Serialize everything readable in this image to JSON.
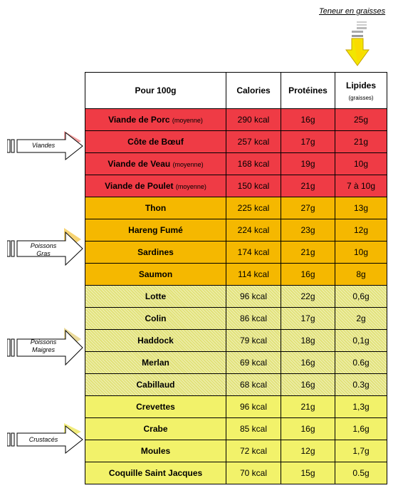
{
  "header_note": "Teneur en graisses",
  "columns": {
    "food": "Pour 100g",
    "calories": "Calories",
    "proteins": "Protéines",
    "lipids": "Lipides",
    "lipids_sub": "(graisses)"
  },
  "groups": [
    {
      "label_line1": "Viandes",
      "label_line2": "",
      "color": "#ef3b45"
    },
    {
      "label_line1": "Poissons",
      "label_line2": "Gras",
      "color": "#f5b800"
    },
    {
      "label_line1": "Poissons",
      "label_line2": "Maigres",
      "color": "#e2e27a"
    },
    {
      "label_line1": "Crustacés",
      "label_line2": "",
      "color": "#f2f26a"
    }
  ],
  "rows": [
    {
      "name": "Viande de Porc",
      "note": "(moyenne)",
      "calories": "290 kcal",
      "proteins": "16g",
      "lipids": "25g"
    },
    {
      "name": "Côte de Bœuf",
      "note": "",
      "calories": "257 kcal",
      "proteins": "17g",
      "lipids": "21g"
    },
    {
      "name": "Viande de Veau",
      "note": "(moyenne)",
      "calories": "168 kcal",
      "proteins": "19g",
      "lipids": "10g"
    },
    {
      "name": "Viande de Poulet",
      "note": "(moyenne)",
      "calories": "150 kcal",
      "proteins": "21g",
      "lipids": "7 à 10g"
    },
    {
      "name": "Thon",
      "note": "",
      "calories": "225 kcal",
      "proteins": "27g",
      "lipids": "13g"
    },
    {
      "name": "Hareng Fumé",
      "note": "",
      "calories": "224 kcal",
      "proteins": "23g",
      "lipids": "12g"
    },
    {
      "name": "Sardines",
      "note": "",
      "calories": "174 kcal",
      "proteins": "21g",
      "lipids": "10g"
    },
    {
      "name": "Saumon",
      "note": "",
      "calories": "114 kcal",
      "proteins": "16g",
      "lipids": "8g"
    },
    {
      "name": "Lotte",
      "note": "",
      "calories": "96 kcal",
      "proteins": "22g",
      "lipids": "0,6g"
    },
    {
      "name": "Colin",
      "note": "",
      "calories": "86 kcal",
      "proteins": "17g",
      "lipids": "2g"
    },
    {
      "name": "Haddock",
      "note": "",
      "calories": "79 kcal",
      "proteins": "18g",
      "lipids": "0,1g"
    },
    {
      "name": "Merlan",
      "note": "",
      "calories": "69 kcal",
      "proteins": "16g",
      "lipids": "0.6g"
    },
    {
      "name": "Cabillaud",
      "note": "",
      "calories": "68 kcal",
      "proteins": "16g",
      "lipids": "0.3g"
    },
    {
      "name": "Crevettes",
      "note": "",
      "calories": "96 kcal",
      "proteins": "21g",
      "lipids": "1,3g"
    },
    {
      "name": "Crabe",
      "note": "",
      "calories": "85 kcal",
      "proteins": "16g",
      "lipids": "1,6g"
    },
    {
      "name": "Moules",
      "note": "",
      "calories": "72 kcal",
      "proteins": "12g",
      "lipids": "1,7g"
    },
    {
      "name": "Coquille Saint Jacques",
      "note": "",
      "calories": "70 kcal",
      "proteins": "15g",
      "lipids": "0.5g"
    }
  ]
}
